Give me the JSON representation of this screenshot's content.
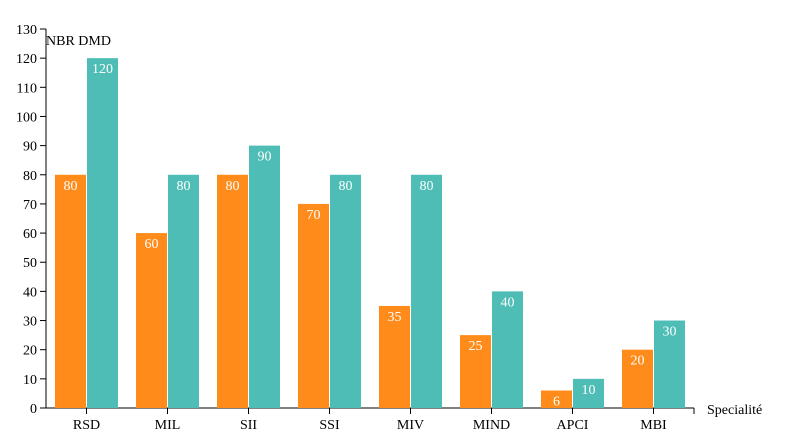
{
  "chart_data": {
    "type": "bar",
    "categories": [
      "RSD",
      "MIL",
      "SII",
      "SSI",
      "MIV",
      "MIND",
      "APCI",
      "MBI"
    ],
    "series": [
      {
        "values": [
          80,
          60,
          80,
          70,
          35,
          25,
          6,
          20
        ],
        "color": "#ff8c1a"
      },
      {
        "values": [
          120,
          80,
          90,
          80,
          80,
          40,
          10,
          30
        ],
        "color": "#4dbdb5"
      }
    ],
    "title": "",
    "xlabel": "Specialité",
    "ylabel": "NBR DMD",
    "ylim": [
      0,
      130
    ],
    "yticks": [
      0,
      10,
      20,
      30,
      40,
      50,
      60,
      70,
      80,
      90,
      100,
      110,
      120,
      130
    ],
    "grid": false,
    "legend": "none",
    "data_labels": true
  }
}
